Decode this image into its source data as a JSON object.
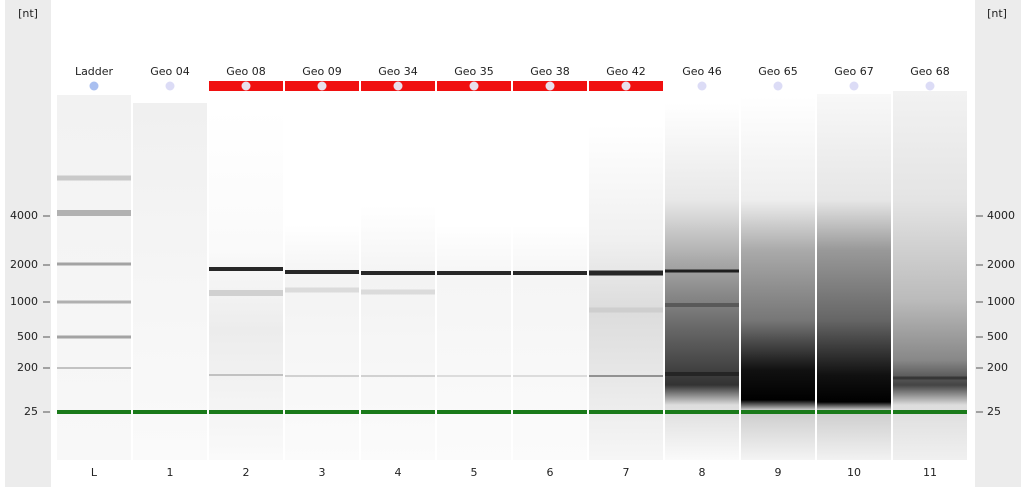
{
  "axis_unit": "[nt]",
  "ticks": [
    4000,
    2000,
    1000,
    500,
    200,
    25
  ],
  "lanes": [
    {
      "name": "Ladder",
      "number": "L",
      "flagged": false
    },
    {
      "name": "Geo 04",
      "number": "1",
      "flagged": false
    },
    {
      "name": "Geo 08",
      "number": "2",
      "flagged": true
    },
    {
      "name": "Geo 09",
      "number": "3",
      "flagged": true
    },
    {
      "name": "Geo 34",
      "number": "4",
      "flagged": true
    },
    {
      "name": "Geo 35",
      "number": "5",
      "flagged": true
    },
    {
      "name": "Geo 38",
      "number": "6",
      "flagged": true
    },
    {
      "name": "Geo 42",
      "number": "7",
      "flagged": true
    },
    {
      "name": "Geo 46",
      "number": "8",
      "flagged": false
    },
    {
      "name": "Geo 65",
      "number": "9",
      "flagged": false
    },
    {
      "name": "Geo 67",
      "number": "10",
      "flagged": false
    },
    {
      "name": "Geo 68",
      "number": "11",
      "flagged": false
    }
  ]
}
